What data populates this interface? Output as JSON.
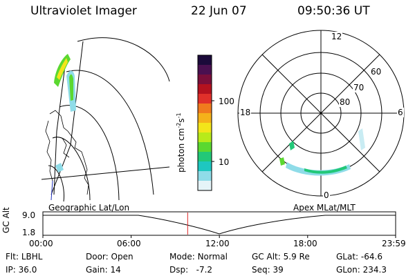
{
  "header": {
    "title": "Ultraviolet Imager",
    "date": "22 Jun 07",
    "time": "09:50:36 UT"
  },
  "colorbar": {
    "unit_label": "photon cm",
    "unit_sup1": "-2",
    "unit_mid": "s",
    "unit_sup2": "-1",
    "ticks": [
      "100",
      "10"
    ],
    "colors": [
      "#1b0a3a",
      "#4a1050",
      "#7a0f3a",
      "#b4121f",
      "#e0302a",
      "#f07a1e",
      "#f5b21a",
      "#f3e51a",
      "#b8ea1a",
      "#5bd830",
      "#22c878",
      "#1ec7c0",
      "#8fdce8",
      "#e5f4f8"
    ]
  },
  "left_panel": {
    "caption": "Geographic Lat/Lon"
  },
  "right_panel": {
    "caption": "Apex MLat/MLT",
    "mlt_labels": {
      "top": "12",
      "left": "18",
      "right": "6",
      "bottom": "0"
    },
    "lat_labels": [
      "60",
      "70",
      "80"
    ]
  },
  "altitude_plot": {
    "ylabel": "GC Alt",
    "yticks": [
      "9.0",
      "1.8"
    ],
    "xticks": [
      "00:00",
      "06:00",
      "12:00",
      "18:00",
      "23:59"
    ],
    "marker_time_hours": 9.843
  },
  "info": {
    "flt": {
      "label": "Flt:",
      "value": "LBHL"
    },
    "ip": {
      "label": "IP:",
      "value": "36.0"
    },
    "door": {
      "label": "Door:",
      "value": "Open"
    },
    "gain": {
      "label": "Gain:",
      "value": "14"
    },
    "mode": {
      "label": "Mode:",
      "value": "Normal"
    },
    "dsp": {
      "label": "Dsp:",
      "value": "-7.2"
    },
    "gcalt": {
      "label": "GC Alt:",
      "value": "5.9 Re"
    },
    "seq": {
      "label": "Seq:",
      "value": "39"
    },
    "glat": {
      "label": "GLat:",
      "value": "-64.6"
    },
    "glon": {
      "label": "GLon:",
      "value": "234.3"
    }
  }
}
